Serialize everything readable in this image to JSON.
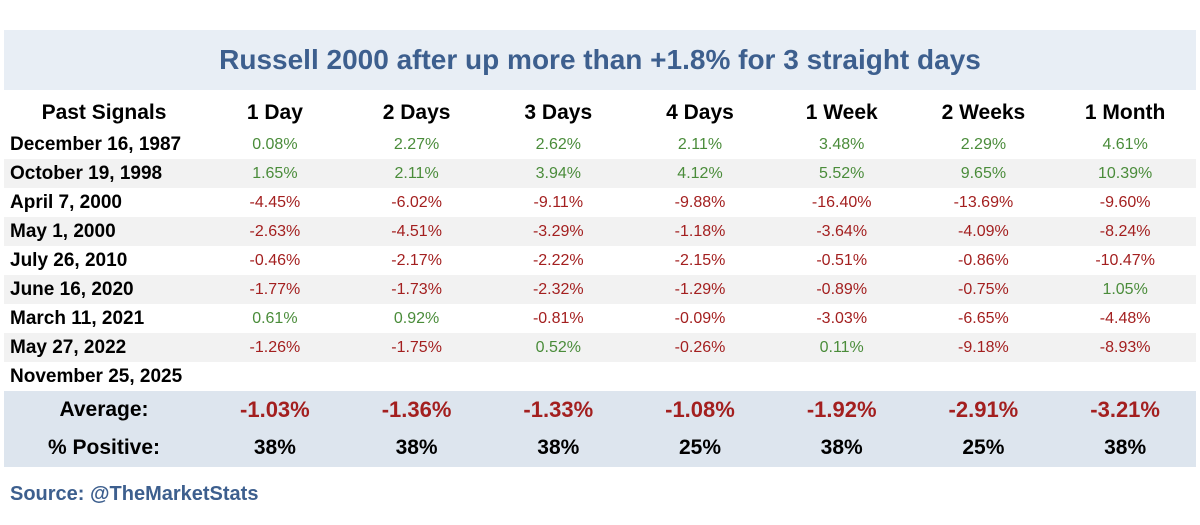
{
  "chart_data": {
    "type": "table",
    "title": "Russell 2000 after up more than +1.8% for 3 straight days",
    "columns": [
      "Past Signals",
      "1 Day",
      "2 Days",
      "3 Days",
      "4 Days",
      "1 Week",
      "2 Weeks",
      "1 Month"
    ],
    "rows": [
      {
        "date": "December 16, 1987",
        "values": [
          "0.08%",
          "2.27%",
          "2.62%",
          "2.11%",
          "3.48%",
          "2.29%",
          "4.61%"
        ]
      },
      {
        "date": "October 19, 1998",
        "values": [
          "1.65%",
          "2.11%",
          "3.94%",
          "4.12%",
          "5.52%",
          "9.65%",
          "10.39%"
        ]
      },
      {
        "date": "April 7, 2000",
        "values": [
          "-4.45%",
          "-6.02%",
          "-9.11%",
          "-9.88%",
          "-16.40%",
          "-13.69%",
          "-9.60%"
        ]
      },
      {
        "date": "May 1, 2000",
        "values": [
          "-2.63%",
          "-4.51%",
          "-3.29%",
          "-1.18%",
          "-3.64%",
          "-4.09%",
          "-8.24%"
        ]
      },
      {
        "date": "July 26, 2010",
        "values": [
          "-0.46%",
          "-2.17%",
          "-2.22%",
          "-2.15%",
          "-0.51%",
          "-0.86%",
          "-10.47%"
        ]
      },
      {
        "date": "June 16, 2020",
        "values": [
          "-1.77%",
          "-1.73%",
          "-2.32%",
          "-1.29%",
          "-0.89%",
          "-0.75%",
          "1.05%"
        ]
      },
      {
        "date": "March 11, 2021",
        "values": [
          "0.61%",
          "0.92%",
          "-0.81%",
          "-0.09%",
          "-3.03%",
          "-6.65%",
          "-4.48%"
        ]
      },
      {
        "date": "May 27, 2022",
        "values": [
          "-1.26%",
          "-1.75%",
          "0.52%",
          "-0.26%",
          "0.11%",
          "-9.18%",
          "-8.93%"
        ]
      },
      {
        "date": "November 25, 2025",
        "values": [
          "",
          "",
          "",
          "",
          "",
          "",
          ""
        ]
      }
    ],
    "average": {
      "label": "Average:",
      "values": [
        "-1.03%",
        "-1.36%",
        "-1.33%",
        "-1.08%",
        "-1.92%",
        "-2.91%",
        "-3.21%"
      ]
    },
    "positive": {
      "label": "% Positive:",
      "values": [
        "38%",
        "38%",
        "38%",
        "25%",
        "38%",
        "25%",
        "38%"
      ]
    }
  },
  "source": "Source: @TheMarketStats",
  "colors": {
    "title": "#3d5f8e",
    "title_band": "#e8eef5",
    "positive": "#4a8c3a",
    "negative": "#a31f1f",
    "summary_band": "#dde5ee",
    "alt_row": "#f2f2f2"
  }
}
